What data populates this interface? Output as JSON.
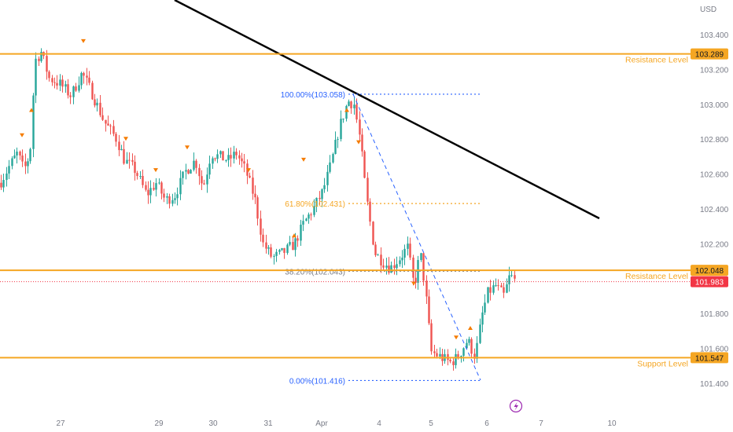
{
  "chart_data": {
    "type": "candlestick",
    "currency_label": "USD",
    "y_ticks": [
      "103.400",
      "103.200",
      "103.000",
      "102.800",
      "102.600",
      "102.400",
      "102.200",
      "101.800",
      "101.600",
      "101.400"
    ],
    "x_ticks": [
      "27",
      "29",
      "30",
      "31",
      "Apr",
      "4",
      "5",
      "6",
      "7",
      "10"
    ],
    "ylim": [
      101.3,
      103.52
    ],
    "levels": [
      {
        "label": "Resistance Level",
        "value": 103.289,
        "value_label": "103.289"
      },
      {
        "label": "Resistance Level",
        "value": 102.048,
        "value_label": "102.048"
      },
      {
        "label": "Support Level",
        "value": 101.547,
        "value_label": "101.547"
      }
    ],
    "last_price": {
      "value": 101.983,
      "value_label": "101.983"
    },
    "fibonacci": [
      {
        "label": "100.00%(103.058)",
        "value": 103.058
      },
      {
        "label": "61.80%(102.431)",
        "value": 102.431
      },
      {
        "label": "38.20%(102.043)",
        "value": 102.043
      },
      {
        "label": "0.00%(101.416)",
        "value": 101.416
      }
    ],
    "colors": {
      "up": "#26a69a",
      "down": "#ef5350",
      "level": "#f5a623",
      "fib": "#2962ff",
      "fib_mid": "#f5a623",
      "trend": "#000000",
      "last": "#f23645"
    }
  }
}
